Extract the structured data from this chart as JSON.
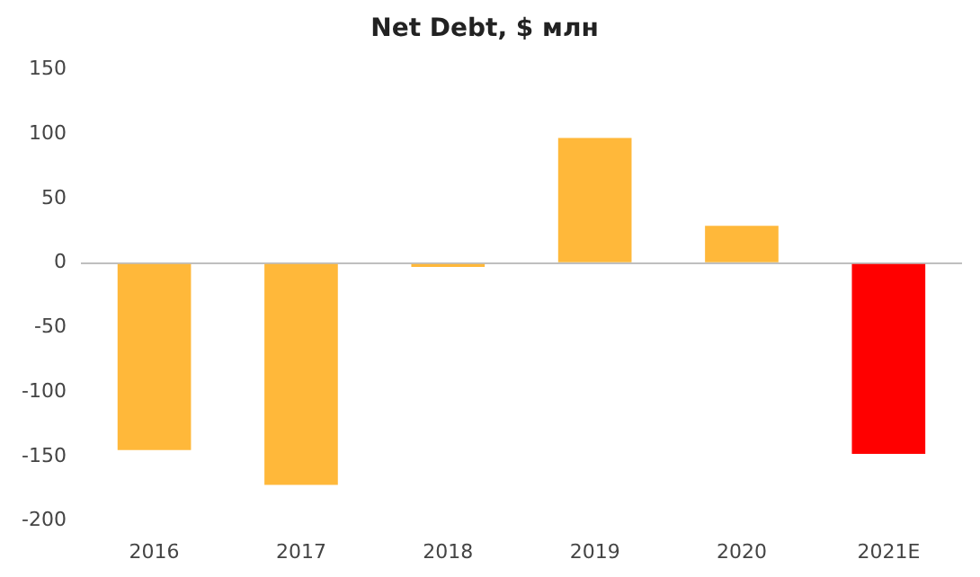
{
  "chart_data": {
    "type": "bar",
    "title": "Net Debt, $ млн",
    "categories": [
      "2016",
      "2017",
      "2018",
      "2019",
      "2020",
      "2021E"
    ],
    "values": [
      -145,
      -172,
      -3,
      97,
      29,
      -148
    ],
    "colors": [
      "#ffb83a",
      "#ffb83a",
      "#ffb83a",
      "#ffb83a",
      "#ffb83a",
      "#ff0000"
    ],
    "ylim": [
      -200,
      150
    ],
    "yticks": [
      -200,
      -150,
      -100,
      -50,
      0,
      50,
      100,
      150
    ],
    "legend": false
  }
}
